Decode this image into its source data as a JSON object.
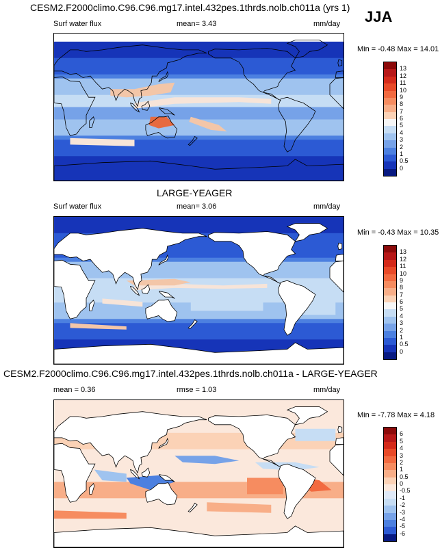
{
  "season": "JJA",
  "panels": [
    {
      "title": "CESM2.F2000climo.C96.C96.mg17.intel.432pes.1thrds.nolb.ch011a (yrs 1)",
      "left_label": "Surf water flux",
      "mid_label": "mean=   3.43",
      "units": "mm/day",
      "minmax": "Min = -0.48 Max = 14.01",
      "colorbar_labels": [
        "13",
        "12",
        "11",
        "10",
        "9",
        "8",
        "7",
        "6",
        "5",
        "4",
        "3",
        "2",
        "1",
        "0.5",
        "0"
      ],
      "colorbar_colors": [
        "#8c0a0a",
        "#b71818",
        "#d42a1a",
        "#e84a28",
        "#f26a40",
        "#f68c60",
        "#f8ae88",
        "#fbd2b6",
        "#f6f6f6",
        "#c6ddf4",
        "#9fc3ef",
        "#76a2e8",
        "#4c80e0",
        "#2c5ad4",
        "#1634b8",
        "#081a82"
      ],
      "land_mask": false
    },
    {
      "title": "LARGE-YEAGER",
      "left_label": "Surf water flux",
      "mid_label": "mean=   3.06",
      "units": "mm/day",
      "minmax": "Min = -0.43 Max = 10.35",
      "colorbar_labels": [
        "13",
        "12",
        "11",
        "10",
        "9",
        "8",
        "7",
        "6",
        "5",
        "4",
        "3",
        "2",
        "1",
        "0.5",
        "0"
      ],
      "colorbar_colors": [
        "#8c0a0a",
        "#b71818",
        "#d42a1a",
        "#e84a28",
        "#f26a40",
        "#f68c60",
        "#f8ae88",
        "#fbd2b6",
        "#f6f6f6",
        "#c6ddf4",
        "#9fc3ef",
        "#76a2e8",
        "#4c80e0",
        "#2c5ad4",
        "#1634b8",
        "#081a82"
      ],
      "land_mask": true
    },
    {
      "title": "CESM2.F2000climo.C96.C96.mg17.intel.432pes.1thrds.nolb.ch011a - LARGE-YEAGER",
      "left_label": "mean =   0.36",
      "mid_label": "rmse =   1.03",
      "units": "mm/day",
      "minmax": "Min = -7.78 Max =   4.18",
      "colorbar_labels": [
        "6",
        "5",
        "4",
        "3",
        "2",
        "1",
        "0.5",
        "0",
        "-0.5",
        "-1",
        "-2",
        "-3",
        "-4",
        "-5",
        "-6"
      ],
      "colorbar_colors": [
        "#8c0a0a",
        "#b71818",
        "#d42a1a",
        "#e84a28",
        "#f26a40",
        "#f68c60",
        "#f8ae88",
        "#fbd2b6",
        "#fbe8dc",
        "#dfe9f7",
        "#c6ddf4",
        "#9fc3ef",
        "#76a2e8",
        "#4c80e0",
        "#2c5ad4",
        "#081a82"
      ],
      "land_mask": true
    }
  ],
  "chart_data": [
    {
      "type": "heatmap",
      "title": "CESM2.F2000climo.C96.C96.mg17.intel.432pes.1thrds.nolb.ch011a (yrs 1)",
      "variable": "Surf water flux",
      "units": "mm/day",
      "mean": 3.43,
      "min": -0.48,
      "max": 14.01,
      "contour_levels": [
        0,
        0.5,
        1,
        2,
        3,
        4,
        5,
        6,
        7,
        8,
        9,
        10,
        11,
        12,
        13
      ]
    },
    {
      "type": "heatmap",
      "title": "LARGE-YEAGER",
      "variable": "Surf water flux",
      "units": "mm/day",
      "mean": 3.06,
      "min": -0.43,
      "max": 10.35,
      "contour_levels": [
        0,
        0.5,
        1,
        2,
        3,
        4,
        5,
        6,
        7,
        8,
        9,
        10,
        11,
        12,
        13
      ]
    },
    {
      "type": "heatmap",
      "title": "CESM2.F2000climo.C96.C96.mg17.intel.432pes.1thrds.nolb.ch011a - LARGE-YEAGER",
      "units": "mm/day",
      "mean": 0.36,
      "rmse": 1.03,
      "min": -7.78,
      "max": 4.18,
      "contour_levels": [
        -6,
        -5,
        -4,
        -3,
        -2,
        -1,
        -0.5,
        0,
        0.5,
        1,
        2,
        3,
        4,
        5,
        6
      ]
    }
  ]
}
